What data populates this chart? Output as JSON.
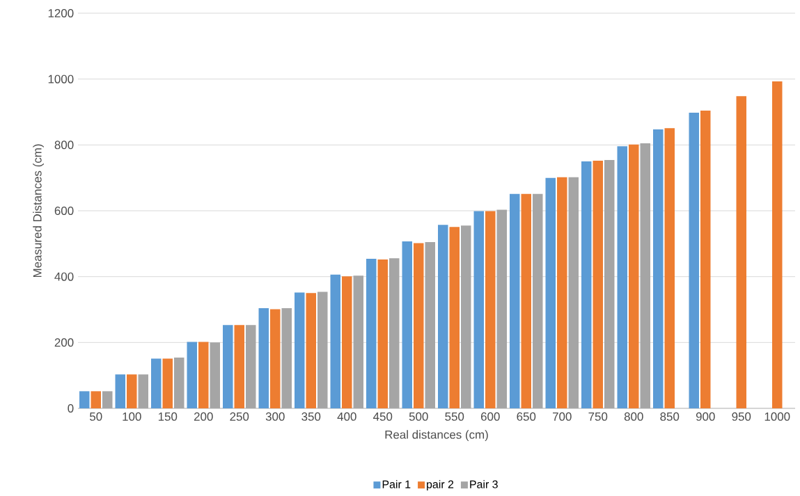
{
  "chart_data": {
    "type": "bar",
    "xlabel": "Real distances (cm)",
    "ylabel": "Measured Distances (cm)",
    "categories": [
      "50",
      "100",
      "150",
      "200",
      "250",
      "300",
      "350",
      "400",
      "450",
      "500",
      "550",
      "600",
      "650",
      "700",
      "750",
      "800",
      "850",
      "900",
      "950",
      "1000"
    ],
    "series": [
      {
        "name": "Pair 1",
        "color": "#5b9bd5",
        "values": [
          52,
          103,
          151,
          202,
          253,
          304,
          352,
          406,
          454,
          507,
          557,
          599,
          651,
          700,
          750,
          796,
          847,
          898,
          null,
          null
        ]
      },
      {
        "name": "pair 2",
        "color": "#ed7d31",
        "values": [
          52,
          103,
          151,
          202,
          253,
          301,
          350,
          401,
          452,
          502,
          551,
          599,
          651,
          702,
          752,
          801,
          851,
          904,
          948,
          993
        ]
      },
      {
        "name": "Pair 3",
        "color": "#a5a5a5",
        "values": [
          52,
          103,
          154,
          200,
          253,
          304,
          354,
          403,
          456,
          505,
          555,
          603,
          651,
          702,
          754,
          805,
          null,
          null,
          null,
          null
        ]
      }
    ],
    "ylim": [
      0,
      1200
    ],
    "yticks": [
      0,
      200,
      400,
      600,
      800,
      1000,
      1200
    ],
    "grid": "y",
    "legend": "bottom"
  }
}
